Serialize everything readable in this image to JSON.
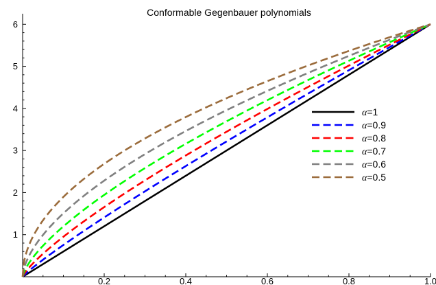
{
  "chart_data": {
    "type": "line",
    "title": "Conformable Gegenbauer polynomials",
    "xlabel": "",
    "ylabel": "",
    "xlim": [
      0,
      1
    ],
    "ylim": [
      0,
      6.25
    ],
    "x_ticks": [
      0.2,
      0.4,
      0.6,
      0.8,
      1.0
    ],
    "x_tick_labels": [
      "0.2",
      "0.4",
      "0.6",
      "0.8",
      "1.0"
    ],
    "y_ticks": [
      1,
      2,
      3,
      4,
      5,
      6
    ],
    "y_tick_labels": [
      "1",
      "2",
      "3",
      "4",
      "5",
      "6"
    ],
    "grid": false,
    "legend_position": "right",
    "formula": "y = 6 * x^alpha",
    "series": [
      {
        "name": "α=1",
        "alpha": 1.0,
        "color": "#000000",
        "style": "solid"
      },
      {
        "name": "α=0.9",
        "alpha": 0.9,
        "color": "#0000ff",
        "style": "dashed"
      },
      {
        "name": "α=0.8",
        "alpha": 0.8,
        "color": "#ff0000",
        "style": "dashed"
      },
      {
        "name": "α=0.7",
        "alpha": 0.7,
        "color": "#00ff00",
        "style": "dashed"
      },
      {
        "name": "α=0.6",
        "alpha": 0.6,
        "color": "#808080",
        "style": "dashed"
      },
      {
        "name": "α=0.5",
        "alpha": 0.5,
        "color": "#9b6c3c",
        "style": "dashed"
      }
    ]
  }
}
